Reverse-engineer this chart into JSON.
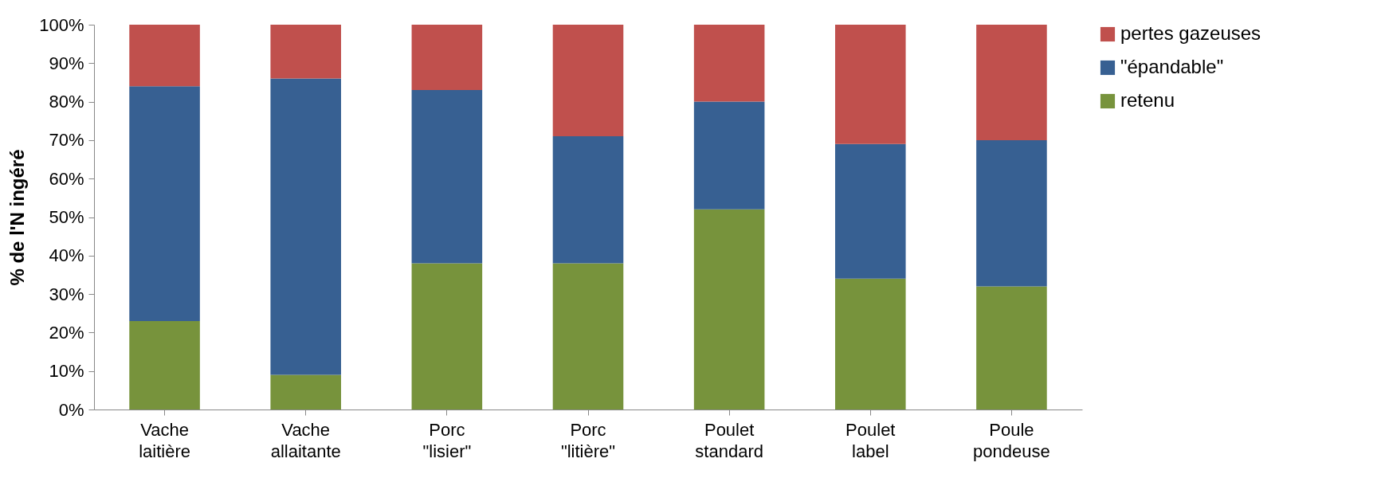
{
  "chart_data": {
    "type": "bar",
    "stacked": true,
    "ylabel": "% de l'N ingéré",
    "categories": [
      "Vache laitière",
      "Vache allaitante",
      "Porc \"lisier\"",
      "Porc \"litière\"",
      "Poulet standard",
      "Poulet label",
      "Poule pondeuse"
    ],
    "series": [
      {
        "name": "retenu",
        "color": "#77933c",
        "values": [
          23,
          9,
          38,
          38,
          52,
          34,
          32
        ]
      },
      {
        "name": "\"épandable\"",
        "color": "#376092",
        "values": [
          61,
          77,
          45,
          33,
          28,
          35,
          38
        ]
      },
      {
        "name": "pertes gazeuses",
        "color": "#c0504d",
        "values": [
          16,
          14,
          17,
          29,
          20,
          31,
          30
        ]
      }
    ],
    "ylim": [
      0,
      100
    ],
    "yticks": [
      {
        "value": 0,
        "label": "0%"
      },
      {
        "value": 10,
        "label": "10%"
      },
      {
        "value": 20,
        "label": "20%"
      },
      {
        "value": 30,
        "label": "30%"
      },
      {
        "value": 40,
        "label": "40%"
      },
      {
        "value": 50,
        "label": "50%"
      },
      {
        "value": 60,
        "label": "60%"
      },
      {
        "value": 70,
        "label": "70%"
      },
      {
        "value": 80,
        "label": "80%"
      },
      {
        "value": 90,
        "label": "90%"
      },
      {
        "value": 100,
        "label": "100%"
      }
    ],
    "legend": "right"
  }
}
